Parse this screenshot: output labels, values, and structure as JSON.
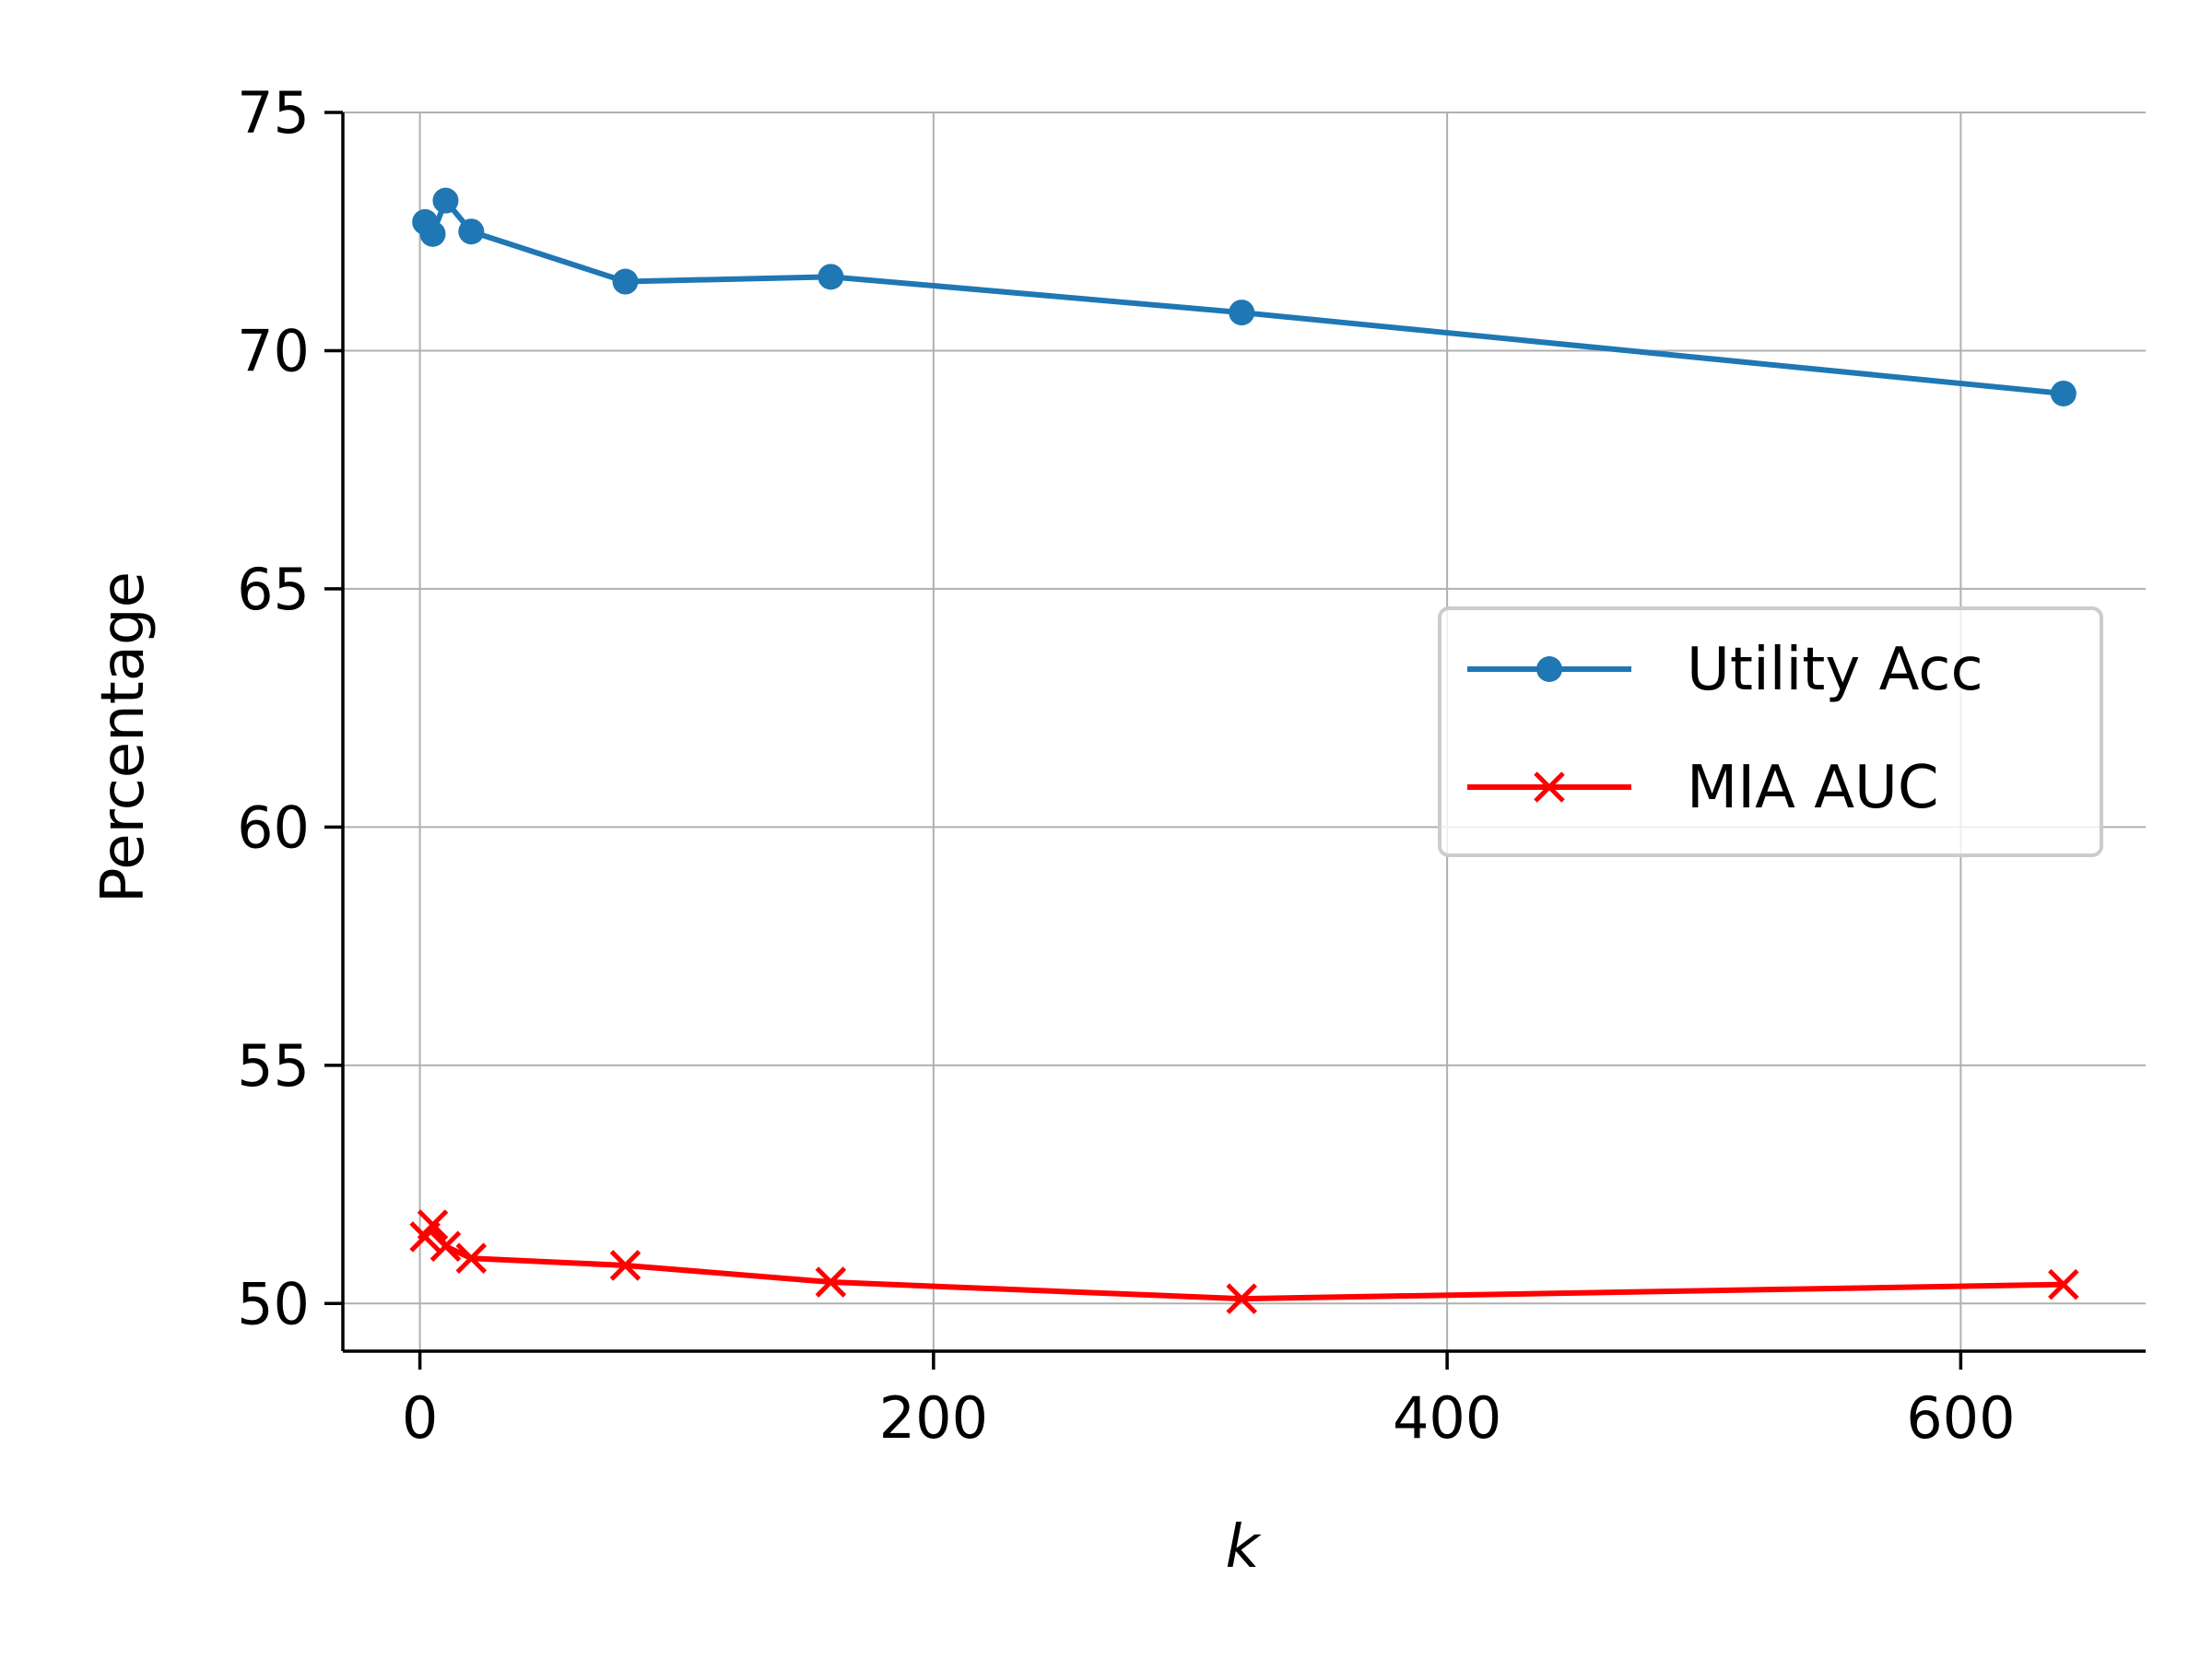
{
  "chart_data": {
    "type": "line",
    "xlabel": "k",
    "ylabel": "Percentage",
    "xlim": [
      -30,
      672
    ],
    "ylim": [
      49,
      75
    ],
    "xticks": [
      0,
      200,
      400,
      600
    ],
    "yticks": [
      50,
      55,
      60,
      65,
      70,
      75
    ],
    "grid": true,
    "legend_position": "center-right",
    "series": [
      {
        "name": "Utility Acc",
        "color": "#1f77b4",
        "marker": "circle",
        "x": [
          2,
          5,
          10,
          20,
          80,
          160,
          320,
          640
        ],
        "y": [
          72.7,
          72.45,
          73.15,
          72.5,
          71.45,
          71.55,
          70.8,
          69.1
        ]
      },
      {
        "name": "MIA AUC",
        "color": "#ff0000",
        "marker": "x",
        "x": [
          2,
          5,
          10,
          20,
          80,
          160,
          320,
          640
        ],
        "y": [
          51.4,
          51.65,
          51.2,
          50.95,
          50.8,
          50.45,
          50.1,
          50.4
        ]
      }
    ]
  }
}
